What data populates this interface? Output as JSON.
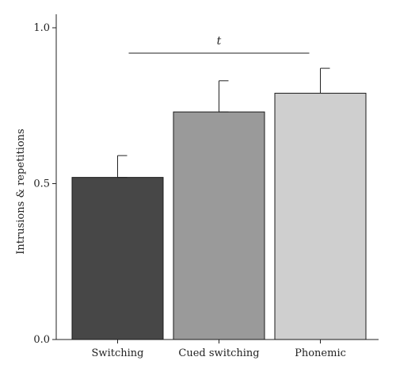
{
  "chart_data": {
    "type": "bar",
    "categories": [
      "Switching",
      "Cued switching",
      "Phonemic"
    ],
    "values": [
      0.52,
      0.73,
      0.79
    ],
    "error_bars": [
      0.07,
      0.1,
      0.08
    ],
    "colors": [
      "#474747",
      "#9a9a9a",
      "#cfcfcf"
    ],
    "title": "",
    "xlabel": "",
    "ylabel": "Intrusions & repetitions",
    "ylim": [
      0.0,
      1.0
    ],
    "yticks": [
      "0.0",
      "0.5",
      "1.0"
    ],
    "grid": false,
    "annotation": {
      "label": "t",
      "from_category": "Switching",
      "to_category": "Phonemic"
    }
  }
}
